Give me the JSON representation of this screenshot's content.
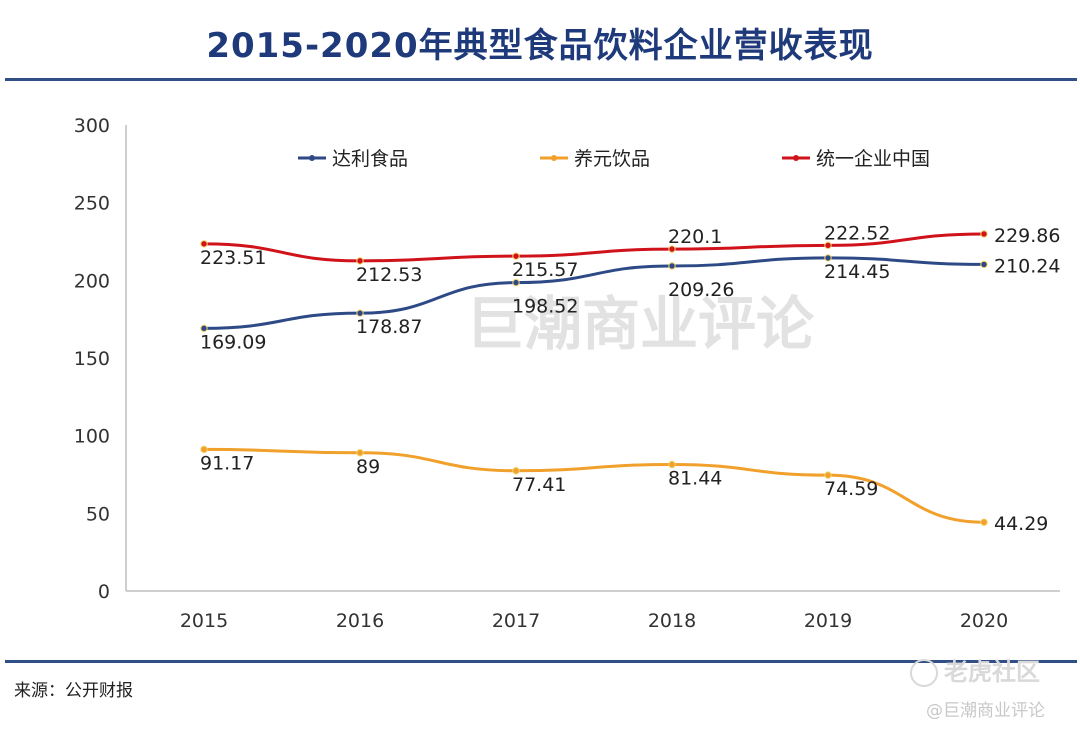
{
  "title": "2015-2020年典型食品饮料企业营收表现",
  "source": "来源：公开财报",
  "watermarks": {
    "center": "巨潮商业评论",
    "brand": "老虎社区",
    "handle": "@巨潮商业评论"
  },
  "chart_data": {
    "type": "line",
    "categories": [
      "2015",
      "2016",
      "2017",
      "2018",
      "2019",
      "2020"
    ],
    "ylim": [
      0,
      300
    ],
    "yticks": [
      0,
      50,
      100,
      150,
      200,
      250,
      300
    ],
    "grid": false,
    "legend_position": "top",
    "series": [
      {
        "name": "达利食品",
        "color": "#2e4a86",
        "values": [
          169.09,
          178.87,
          198.52,
          209.26,
          214.45,
          210.24
        ],
        "labels": [
          "169.09",
          "178.87",
          "198.52",
          "209.26",
          "214.45",
          "210.24"
        ]
      },
      {
        "name": "养元饮品",
        "color": "#f0a02b",
        "values": [
          91.17,
          89,
          77.41,
          81.44,
          74.59,
          44.29
        ],
        "labels": [
          "91.17",
          "89",
          "77.41",
          "81.44",
          "74.59",
          "44.29"
        ]
      },
      {
        "name": "统一企业中国",
        "color": "#d0121b",
        "values": [
          223.51,
          212.53,
          215.57,
          220.1,
          222.52,
          229.86
        ],
        "labels": [
          "223.51",
          "212.53",
          "215.57",
          "220.1",
          "222.52",
          "229.86"
        ]
      }
    ]
  }
}
